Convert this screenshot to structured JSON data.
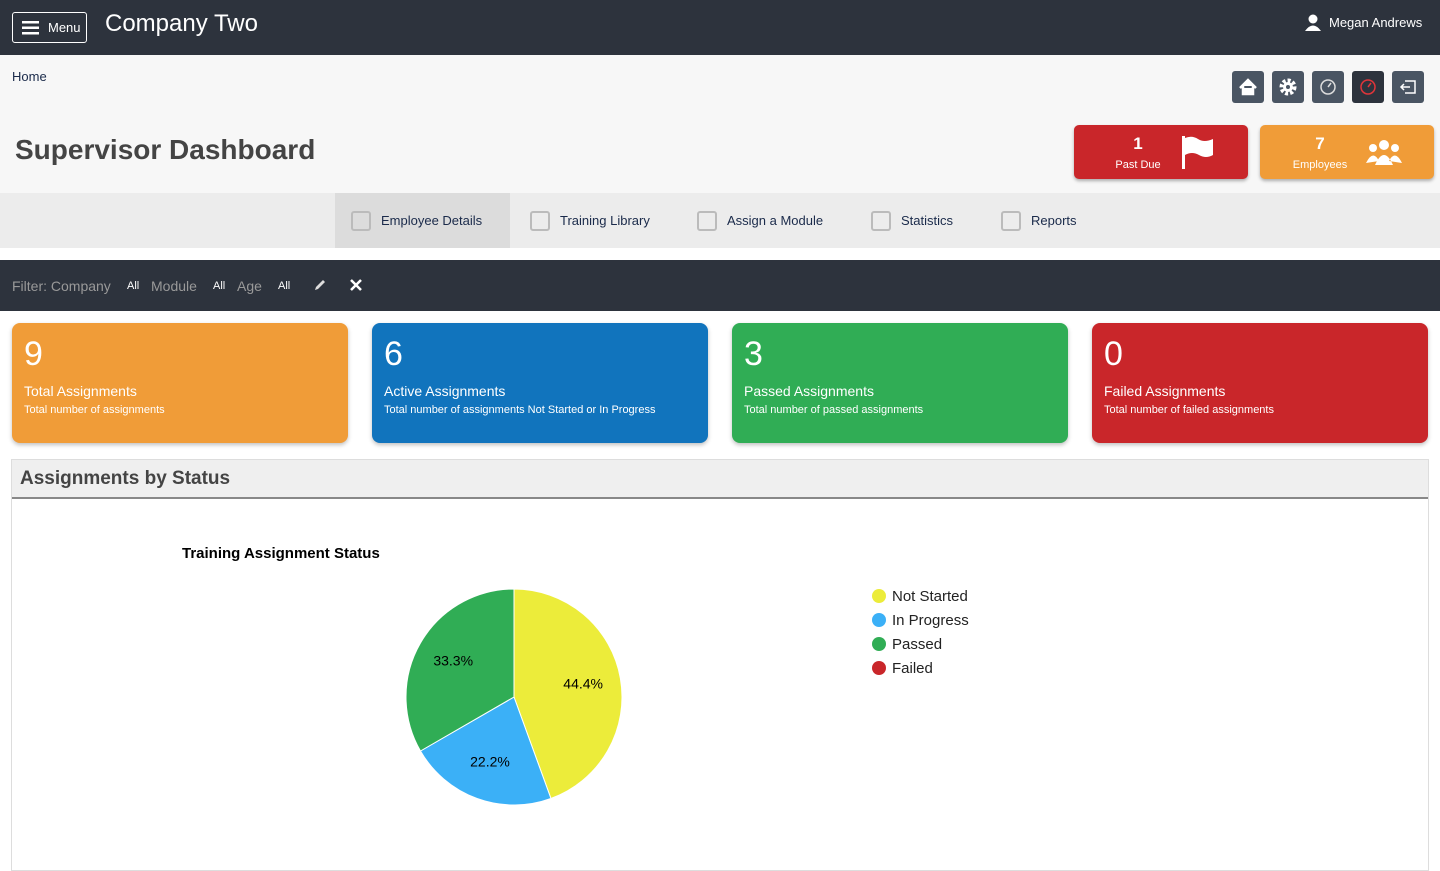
{
  "header": {
    "menu": "Menu",
    "company": "Company Two",
    "user": "Megan Andrews"
  },
  "breadcrumb": "Home",
  "page_title": "Supervisor Dashboard",
  "badges": [
    {
      "value": 1,
      "label": "Past Due"
    },
    {
      "value": 7,
      "label": "Employees"
    }
  ],
  "tabs": [
    "Employee Details",
    "Training Library",
    "Assign a Module",
    "Statistics",
    "Reports"
  ],
  "filter": {
    "label": "Filter: Company",
    "company": "All",
    "module_label": "Module",
    "module": "All",
    "age_label": "Age",
    "age": "All"
  },
  "cards": [
    {
      "value": 9,
      "title": "Total Assignments",
      "description": "Total number of assignments"
    },
    {
      "value": 6,
      "title": "Active Assignments",
      "description": "Total number of assignments Not Started or In Progress"
    },
    {
      "value": 3,
      "title": "Passed Assignments",
      "description": "Total number of passed assignments"
    },
    {
      "value": 0,
      "title": "Failed Assignments",
      "description": "Total number of failed assignments"
    }
  ],
  "panel_title": "Assignments by Status",
  "chart_data": {
    "type": "pie",
    "title": "Training Assignment Status",
    "categories": [
      "Not Started",
      "In Progress",
      "Passed",
      "Failed"
    ],
    "values": [
      44.4,
      22.2,
      33.3,
      0
    ],
    "value_labels": [
      "44.4%",
      "22.2%",
      "33.3%",
      null
    ],
    "colors": [
      "#ecec3a",
      "#3bb0f7",
      "#30ad55",
      "#c9262a"
    ]
  }
}
